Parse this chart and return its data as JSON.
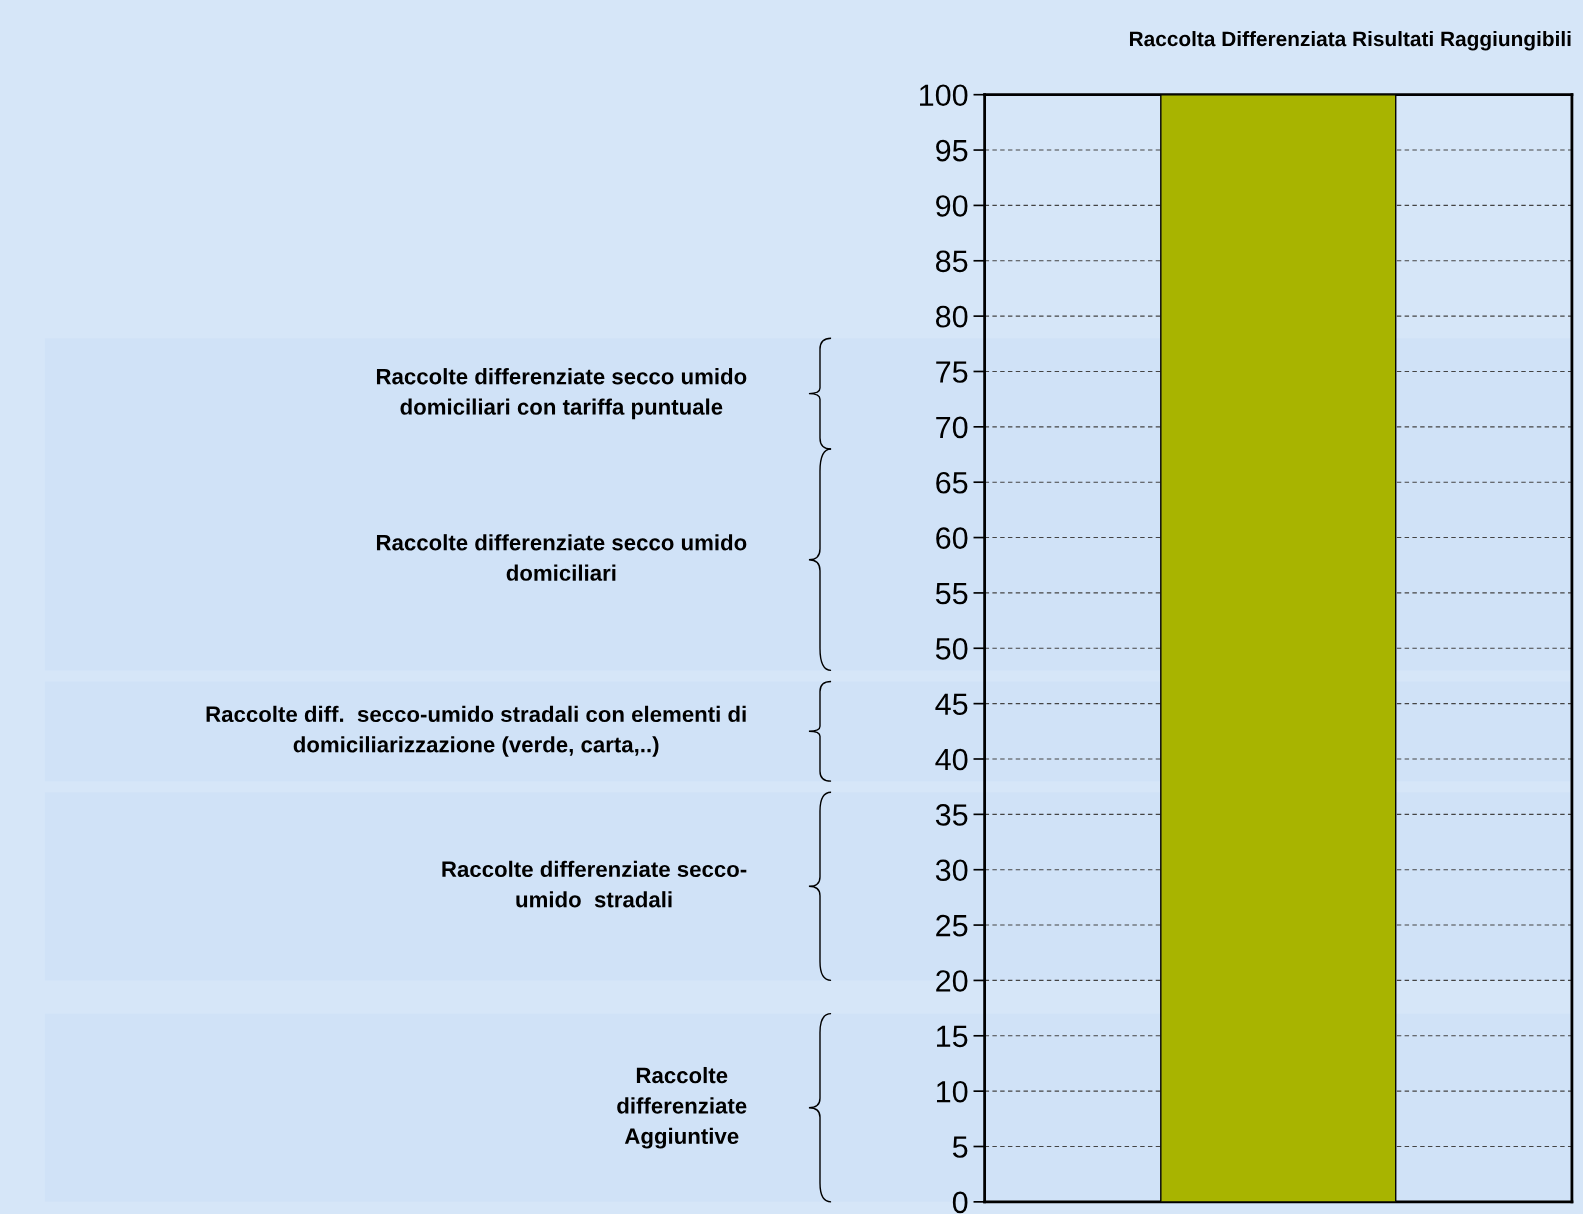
{
  "chart_data": {
    "type": "bar",
    "title": "Raccolta Differenziata Risultati Raggiungibili",
    "categories": [
      null
    ],
    "series": [
      {
        "color": "#a8b400",
        "values": [
          100
        ]
      }
    ],
    "ylim": [
      0,
      100
    ],
    "yticks": [
      0,
      5,
      10,
      15,
      20,
      25,
      30,
      35,
      40,
      45,
      50,
      55,
      60,
      65,
      70,
      75,
      80,
      85,
      90,
      95,
      100
    ],
    "grid": "y",
    "tick_labels": "y",
    "bands": [
      {
        "axis": "y",
        "from": 68,
        "to": 78,
        "label": "Raccolte differenziate secco umido\ndomiciliari con tariffa puntuale"
      },
      {
        "axis": "y",
        "from": 48,
        "to": 68,
        "label": "Raccolte differenziate secco umido\ndomiciliari"
      },
      {
        "axis": "y",
        "from": 38,
        "to": 47,
        "label": "Raccolte diff.  secco-umido stradali con elementi di\ndomiciliarizzazione (verde, carta,..)"
      },
      {
        "axis": "y",
        "from": 20,
        "to": 37,
        "label": "Raccolte differenziate secco-\numido  stradali"
      },
      {
        "axis": "y",
        "from": 0,
        "to": 17,
        "label": "Raccolte\ndifferenziate\nAggiuntive"
      }
    ]
  }
}
